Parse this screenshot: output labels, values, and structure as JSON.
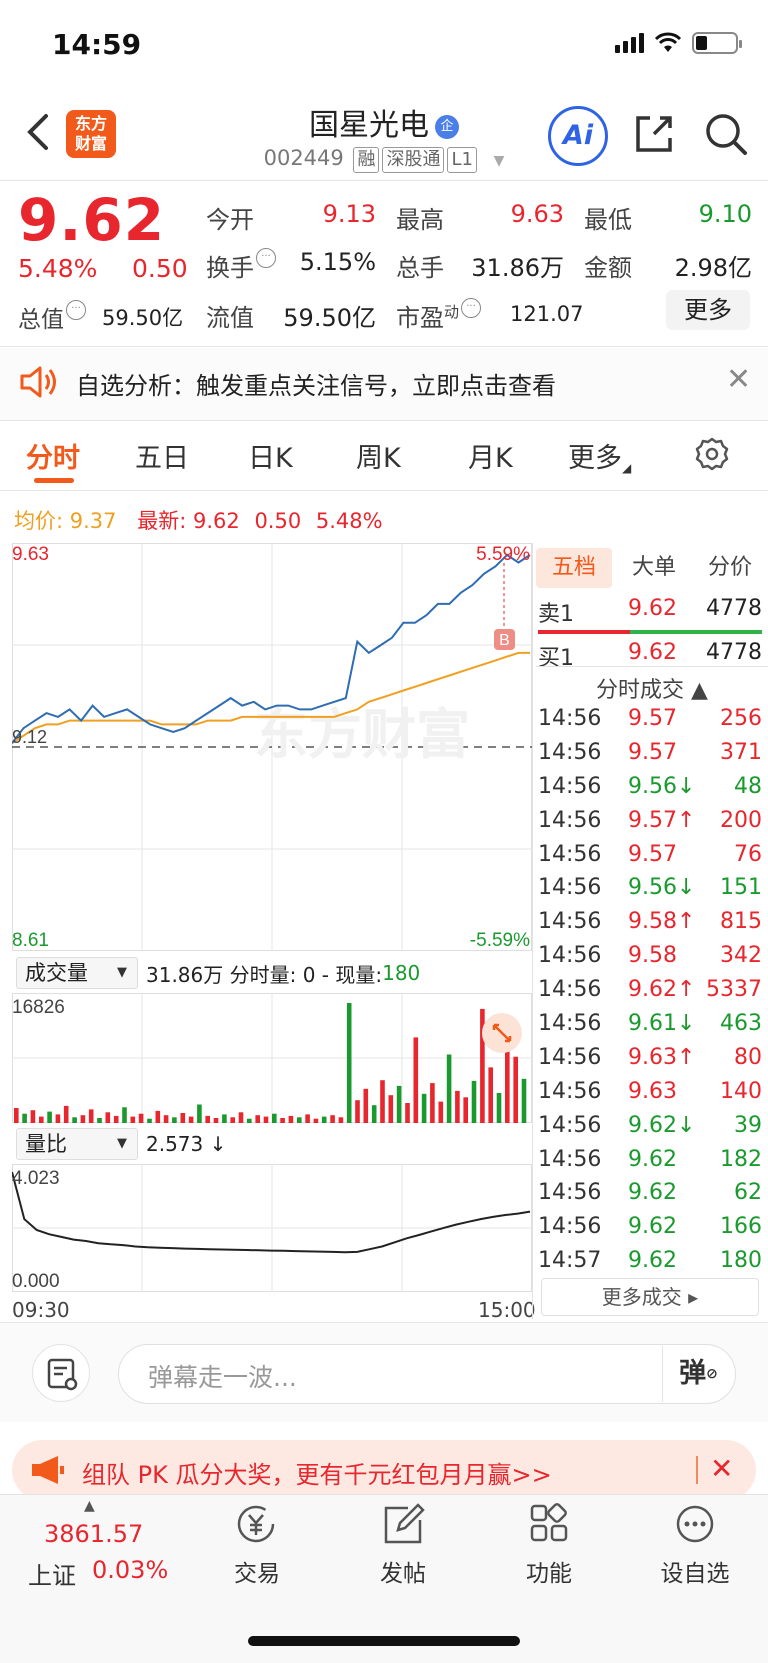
{
  "status": {
    "time": "14:59"
  },
  "header": {
    "logo": "东方\n财富",
    "name": "国星光电",
    "enterprise_badge": "企",
    "code": "002449",
    "tags": [
      "融",
      "深股通",
      "L1"
    ],
    "ai": "Ai"
  },
  "quote": {
    "price": "9.62",
    "pct": "5.48%",
    "change": "0.50",
    "zongzhi_label": "总值",
    "zongzhi_value": "59.50亿",
    "jinkai_label": "今开",
    "jinkai": "9.13",
    "zuigao_label": "最高",
    "zuigao": "9.63",
    "zuidi_label": "最低",
    "zuidi": "9.10",
    "huanshou_label": "换手",
    "huanshou": "5.15%",
    "zongshou_label": "总手",
    "zongshou": "31.86万",
    "jine_label": "金额",
    "jine": "2.98亿",
    "liuzhi_label": "流值",
    "liuzhi": "59.50亿",
    "shiying_label": "市盈",
    "shiying_sup": "动",
    "shiying": "121.07",
    "more": "更多"
  },
  "notice": {
    "text": "自选分析：触发重点关注信号，立即点击查看"
  },
  "tabs": [
    "分时",
    "五日",
    "日K",
    "周K",
    "月K",
    "更多"
  ],
  "avg": {
    "avg_label": "均价:",
    "avg_value": "9.37",
    "latest_label": "最新:",
    "latest_value": "9.62",
    "latest_change": "0.50",
    "latest_pct": "5.48%"
  },
  "chart_labels": {
    "max_price": "9.63",
    "max_pct": "5.59%",
    "prev_close": "9.12",
    "min_price": "8.61",
    "min_pct": "-5.59%",
    "buy_marker": "B",
    "vol_dropdown": "成交量",
    "vol_summary": "31.86万 分时量: 0 - 现量: ",
    "vol_now": "180",
    "vol_max": "16826",
    "lb_dropdown": "量比",
    "lb_value": "2.573 ↓",
    "lb_max": "4.023",
    "lb_min": "0.000",
    "time_start": "09:30",
    "time_end": "15:00"
  },
  "chart_data": [
    {
      "type": "line",
      "title": "",
      "series": [
        {
          "values": [
            9.13,
            9.17,
            9.19,
            9.21,
            9.2,
            9.22,
            9.19,
            9.23,
            9.2,
            9.21,
            9.22,
            9.2,
            9.18,
            9.17,
            9.16,
            9.17,
            9.19,
            9.21,
            9.23,
            9.25,
            9.23,
            9.24,
            9.22,
            9.23,
            9.23,
            9.22,
            9.22,
            9.23,
            9.24,
            9.25,
            9.4,
            9.37,
            9.39,
            9.41,
            9.45,
            9.45,
            9.47,
            9.5,
            9.5,
            9.53,
            9.55,
            9.58,
            9.6,
            9.63,
            9.61,
            9.63
          ]
        },
        {
          "values": [
            9.13,
            9.15,
            9.17,
            9.18,
            9.18,
            9.19,
            9.19,
            9.19,
            9.19,
            9.19,
            9.19,
            9.19,
            9.19,
            9.18,
            9.18,
            9.18,
            9.18,
            9.19,
            9.19,
            9.19,
            9.2,
            9.2,
            9.2,
            9.2,
            9.2,
            9.2,
            9.2,
            9.2,
            9.2,
            9.21,
            9.22,
            9.24,
            9.25,
            9.26,
            9.27,
            9.28,
            9.29,
            9.3,
            9.31,
            9.32,
            9.33,
            9.34,
            9.35,
            9.36,
            9.37,
            9.37
          ]
        }
      ],
      "ylim": [
        8.61,
        9.63
      ],
      "prev_close": 9.12
    },
    {
      "type": "bar",
      "title": "",
      "values": [
        2100,
        1300,
        1800,
        900,
        1600,
        1200,
        2400,
        800,
        1100,
        1900,
        700,
        1500,
        1000,
        2200,
        900,
        1300,
        600,
        1700,
        1100,
        800,
        1400,
        900,
        2600,
        1000,
        700,
        1200,
        800,
        1500,
        600,
        1100,
        900,
        1300,
        700,
        1000,
        800,
        1200,
        600,
        900,
        1100,
        800,
        16826,
        3200,
        4800,
        2500,
        6000,
        3900,
        5200,
        2800,
        12000,
        4100,
        5600,
        3000,
        9600,
        4500,
        3600,
        5900,
        16000,
        7800,
        4200,
        12600,
        9300,
        6200
      ],
      "ylim": [
        0,
        16826
      ]
    },
    {
      "type": "line",
      "title": "",
      "series": [
        {
          "values": [
            4.023,
            2.3,
            1.9,
            1.75,
            1.65,
            1.55,
            1.5,
            1.42,
            1.38,
            1.35,
            1.3,
            1.27,
            1.25,
            1.24,
            1.22,
            1.21,
            1.2,
            1.19,
            1.18,
            1.17,
            1.16,
            1.15,
            1.14,
            1.13,
            1.12,
            1.11,
            1.1,
            1.09,
            1.1,
            1.2,
            1.3,
            1.45,
            1.6,
            1.72,
            1.85,
            1.98,
            2.1,
            2.2,
            2.3,
            2.38,
            2.45,
            2.5,
            2.573
          ]
        }
      ],
      "ylim": [
        0,
        4.023
      ]
    }
  ],
  "right_panel": {
    "tabs": [
      "五档",
      "大单",
      "分价"
    ],
    "sell1_label": "卖1",
    "sell1_price": "9.62",
    "sell1_vol": "4778",
    "buy1_label": "买1",
    "buy1_price": "9.62",
    "buy1_vol": "4778",
    "trades_title": "分时成交 ▲",
    "trades": [
      {
        "time": "14:56",
        "price": "9.57",
        "arrow": "",
        "vol": "256",
        "color": "#e8262d"
      },
      {
        "time": "14:56",
        "price": "9.57",
        "arrow": "",
        "vol": "371",
        "color": "#e8262d"
      },
      {
        "time": "14:56",
        "price": "9.56",
        "arrow": "↓",
        "vol": "48",
        "color": "#1a9a2e"
      },
      {
        "time": "14:56",
        "price": "9.57",
        "arrow": "↑",
        "vol": "200",
        "color": "#e8262d"
      },
      {
        "time": "14:56",
        "price": "9.57",
        "arrow": "",
        "vol": "76",
        "color": "#e8262d"
      },
      {
        "time": "14:56",
        "price": "9.56",
        "arrow": "↓",
        "vol": "151",
        "color": "#1a9a2e"
      },
      {
        "time": "14:56",
        "price": "9.58",
        "arrow": "↑",
        "vol": "815",
        "color": "#e8262d"
      },
      {
        "time": "14:56",
        "price": "9.58",
        "arrow": "",
        "vol": "342",
        "color": "#e8262d"
      },
      {
        "time": "14:56",
        "price": "9.62",
        "arrow": "↑",
        "vol": "5337",
        "color": "#e8262d"
      },
      {
        "time": "14:56",
        "price": "9.61",
        "arrow": "↓",
        "vol": "463",
        "color": "#1a9a2e"
      },
      {
        "time": "14:56",
        "price": "9.63",
        "arrow": "↑",
        "vol": "80",
        "color": "#e8262d"
      },
      {
        "time": "14:56",
        "price": "9.63",
        "arrow": "",
        "vol": "140",
        "color": "#e8262d"
      },
      {
        "time": "14:56",
        "price": "9.62",
        "arrow": "↓",
        "vol": "39",
        "color": "#1a9a2e"
      },
      {
        "time": "14:56",
        "price": "9.62",
        "arrow": "",
        "vol": "182",
        "color": "#1a9a2e"
      },
      {
        "time": "14:56",
        "price": "9.62",
        "arrow": "",
        "vol": "62",
        "color": "#1a9a2e"
      },
      {
        "time": "14:56",
        "price": "9.62",
        "arrow": "",
        "vol": "166",
        "color": "#1a9a2e"
      },
      {
        "time": "14:57",
        "price": "9.62",
        "arrow": "",
        "vol": "180",
        "color": "#1a9a2e"
      }
    ],
    "more_trades": "更多成交 ▸"
  },
  "comment": {
    "placeholder": "弹幕走一波...",
    "danmu": "弹"
  },
  "banner": {
    "text": "组队 PK 瓜分大奖，更有千元红包月月赢>>"
  },
  "bottom": {
    "index_value": "3861.57",
    "index_name": "上证",
    "index_pct": "0.03%",
    "nav": [
      "交易",
      "发帖",
      "功能",
      "设自选"
    ]
  }
}
